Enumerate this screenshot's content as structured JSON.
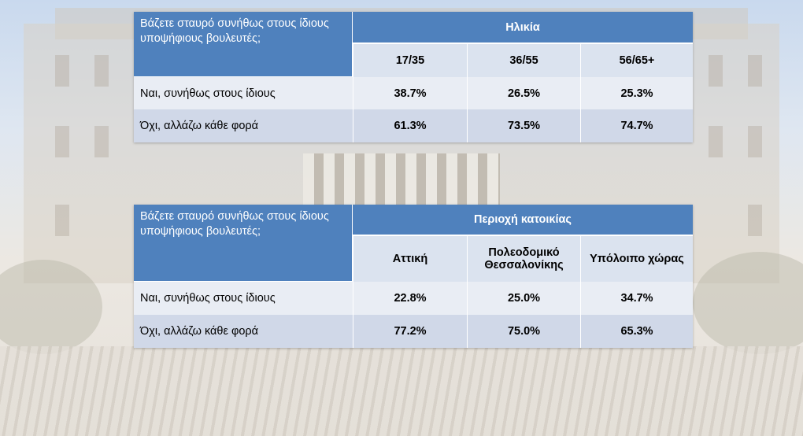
{
  "tables": [
    {
      "question": "Βάζετε σταυρό συνήθως στους ίδιους υποψήφιους βουλευτές;",
      "group_header": "Ηλικία",
      "columns": [
        "17/35",
        "36/55",
        "56/65+"
      ],
      "rows": [
        {
          "label": "Ναι, συνήθως στους ίδιους",
          "values": [
            "38.7%",
            "26.5%",
            "25.3%"
          ]
        },
        {
          "label": "Όχι, αλλάζω κάθε φορά",
          "values": [
            "61.3%",
            "73.5%",
            "74.7%"
          ]
        }
      ]
    },
    {
      "question": "Βάζετε σταυρό συνήθως στους ίδιους υποψήφιους βουλευτές;",
      "group_header": "Περιοχή κατοικίας",
      "columns": [
        "Αττική",
        "Πολεοδομικό Θεσσαλονίκης",
        "Υπόλοιπο χώρας"
      ],
      "rows": [
        {
          "label": "Ναι, συνήθως στους ίδιους",
          "values": [
            "22.8%",
            "25.0%",
            "34.7%"
          ]
        },
        {
          "label": "Όχι, αλλάζω κάθε φορά",
          "values": [
            "77.2%",
            "75.0%",
            "65.3%"
          ]
        }
      ]
    }
  ],
  "colors": {
    "header_blue": "#4f81bd",
    "subheader": "#dbe3ef",
    "row_light": "#e9edf4",
    "row_dark": "#d0d8e8"
  }
}
